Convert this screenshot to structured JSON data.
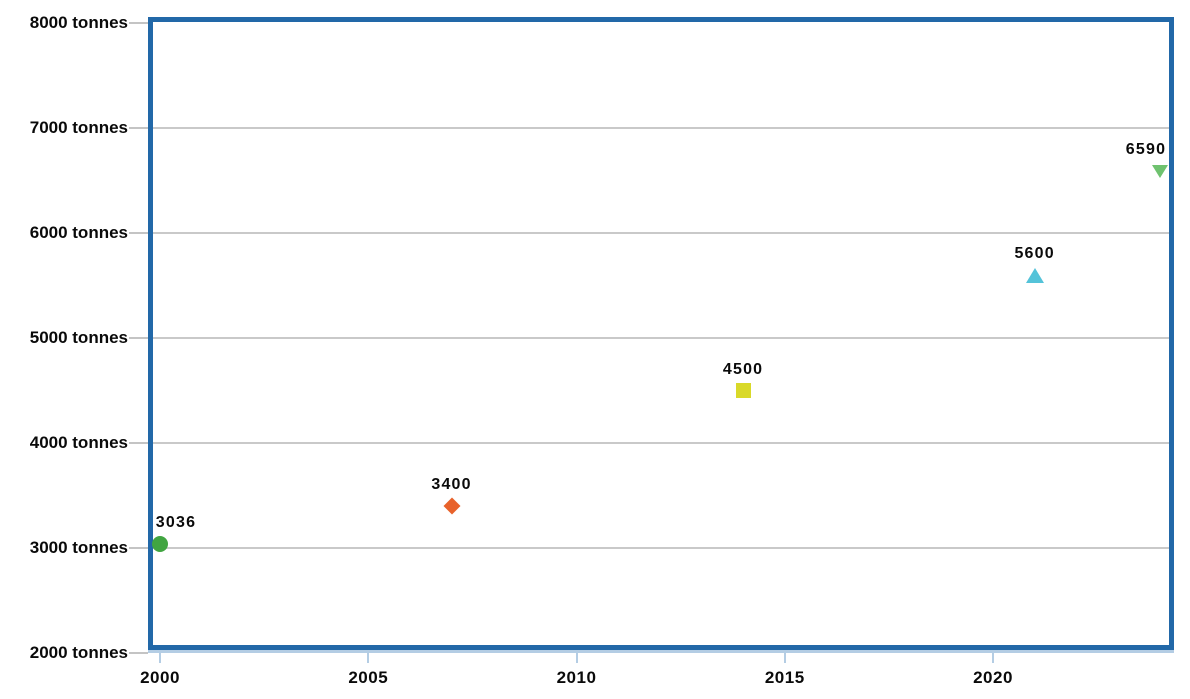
{
  "chart_data": {
    "type": "scatter",
    "title": "",
    "xlabel": "",
    "ylabel": "tonnes",
    "x_ticks": [
      "2000",
      "2005",
      "2010",
      "2015",
      "2020"
    ],
    "x_tick_values": [
      2000,
      2005,
      2010,
      2015,
      2020
    ],
    "y_ticks": [
      "8000 tonnes",
      "7000 tonnes",
      "6000 tonnes",
      "5000 tonnes",
      "4000 tonnes",
      "3000 tonnes",
      "2000 tonnes"
    ],
    "y_tick_values": [
      8000,
      7000,
      6000,
      5000,
      4000,
      3000,
      2000
    ],
    "xlim": [
      1999.7,
      2024.3
    ],
    "ylim": [
      2000,
      8000
    ],
    "grid": true,
    "legend": false,
    "points": [
      {
        "x": 2000,
        "y": 3036,
        "label": "3036",
        "marker": "circle",
        "color": "#41A541"
      },
      {
        "x": 2007,
        "y": 3400,
        "label": "3400",
        "marker": "diamond",
        "color": "#E8622B"
      },
      {
        "x": 2014,
        "y": 4500,
        "label": "4500",
        "marker": "square",
        "color": "#D9D929"
      },
      {
        "x": 2021,
        "y": 5600,
        "label": "5600",
        "marker": "triangle-up",
        "color": "#54C3D9"
      },
      {
        "x": 2024,
        "y": 6590,
        "label": "6590",
        "marker": "triangle-down",
        "color": "#6FC26F"
      }
    ],
    "colors": {
      "plot_border": "#2268A8",
      "gridline": "#C9C9C9",
      "y_tick": "#C4C4C4",
      "x_axis_line": "#B4CDE4",
      "x_tick": "#B4CDE4",
      "text": "#0A0A0A"
    }
  }
}
